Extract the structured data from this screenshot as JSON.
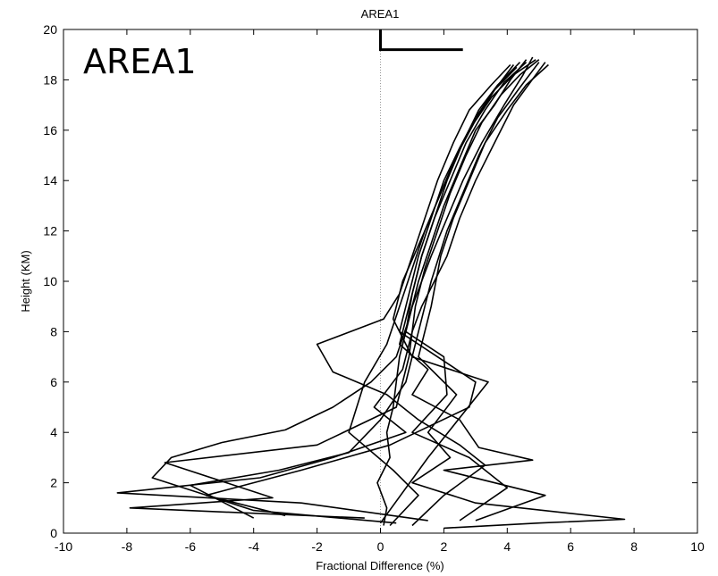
{
  "chart_data": {
    "type": "line",
    "title": "AREA1",
    "overlay_title": "AREA1",
    "xlabel": "Fractional Difference (%)",
    "ylabel": "Height (KM)",
    "xlim": [
      -10,
      10
    ],
    "ylim": [
      0,
      20
    ],
    "xticks": [
      -10,
      -8,
      -6,
      -4,
      -2,
      0,
      2,
      4,
      6,
      8,
      10
    ],
    "yticks": [
      0,
      2,
      4,
      6,
      8,
      10,
      12,
      14,
      16,
      18,
      20
    ],
    "grid": false,
    "reference_line": {
      "x": 0,
      "style": "dotted"
    },
    "top_marker": {
      "x": [
        0,
        0,
        2.6
      ],
      "y": [
        20,
        19.2,
        19.2
      ]
    },
    "series": [
      {
        "x": [
          0.1,
          0.2,
          -0.1,
          0.3,
          0.2,
          0.4,
          0.5,
          0.6,
          0.8,
          1.0,
          1.3,
          1.6,
          2.1,
          2.6,
          3.2,
          3.9,
          4.5,
          4.8
        ],
        "y": [
          0.3,
          1.0,
          2.0,
          3.0,
          4.0,
          5.0,
          6.0,
          7.0,
          8.0,
          9.0,
          10.0,
          11.0,
          12.5,
          14.0,
          15.5,
          17.0,
          18.2,
          18.9
        ]
      },
      {
        "x": [
          1.5,
          -2.5,
          -8.3,
          -3.8,
          -1.5,
          0.8,
          -0.2,
          0.7,
          1.0,
          1.3,
          1.7,
          2.1,
          2.5,
          3.0,
          3.6,
          4.2,
          4.9,
          5.2
        ],
        "y": [
          0.5,
          1.2,
          1.6,
          2.2,
          3.0,
          4.0,
          5.0,
          6.5,
          8.0,
          9.0,
          10.0,
          11.0,
          12.5,
          14.0,
          15.5,
          17.0,
          18.2,
          18.7
        ]
      },
      {
        "x": [
          0.5,
          -4.0,
          -7.2,
          -6.6,
          -5.0,
          -3.0,
          -1.5,
          -0.3,
          0.5,
          0.9,
          1.2,
          1.6,
          2.0,
          2.5,
          3.0,
          3.6,
          4.1,
          4.6
        ],
        "y": [
          0.4,
          0.9,
          2.2,
          3.0,
          3.6,
          4.1,
          5.0,
          6.0,
          7.0,
          8.5,
          10.0,
          11.5,
          13.0,
          14.5,
          16.0,
          17.0,
          18.0,
          18.8
        ]
      },
      {
        "x": [
          2.0,
          5.0,
          7.7,
          3.0,
          1.0,
          2.2,
          1.5,
          2.4,
          1.2,
          1.6,
          1.9,
          2.3,
          2.8,
          3.3,
          4.0,
          4.6,
          5.3
        ],
        "y": [
          0.2,
          0.4,
          0.55,
          1.2,
          2.0,
          3.0,
          4.0,
          5.5,
          7.0,
          9.0,
          11.0,
          12.5,
          14.0,
          15.5,
          16.8,
          17.8,
          18.6
        ]
      },
      {
        "x": [
          -0.5,
          -7.9,
          -3.4,
          -6.8,
          -2.0,
          0.5,
          0.9,
          1.1,
          1.4,
          1.8,
          2.2,
          2.7,
          3.2,
          3.8,
          4.4,
          5.0
        ],
        "y": [
          0.6,
          1.0,
          1.4,
          2.8,
          3.5,
          5.0,
          7.0,
          9.0,
          10.5,
          12.0,
          13.5,
          15.0,
          16.3,
          17.4,
          18.2,
          18.8
        ]
      },
      {
        "x": [
          3.0,
          5.2,
          2.0,
          4.8,
          3.1,
          2.5,
          1.0,
          1.5,
          0.6,
          0.9,
          1.3,
          1.7,
          2.1,
          2.6,
          3.1,
          3.7,
          4.4
        ],
        "y": [
          0.5,
          1.5,
          2.5,
          2.9,
          3.4,
          4.5,
          5.5,
          6.5,
          7.5,
          9.0,
          11.0,
          12.5,
          14.0,
          15.5,
          16.8,
          17.8,
          18.7
        ]
      },
      {
        "x": [
          -3.0,
          -5.5,
          -2.5,
          0.3,
          2.8,
          3.0,
          1.8,
          0.6,
          0.9,
          1.2,
          1.6,
          2.0,
          2.5,
          3.0,
          3.6,
          4.3
        ],
        "y": [
          0.7,
          1.5,
          2.5,
          3.5,
          5.0,
          6.0,
          7.0,
          8.0,
          9.5,
          11.0,
          12.5,
          14.0,
          15.3,
          16.5,
          17.6,
          18.5
        ]
      },
      {
        "x": [
          1.0,
          2.0,
          3.3,
          2.5,
          1.2,
          0.2,
          -1.5,
          -2.0,
          0.1,
          0.6,
          1.0,
          1.4,
          1.8,
          2.3,
          2.8,
          3.5,
          4.1
        ],
        "y": [
          0.3,
          1.5,
          2.7,
          3.5,
          4.5,
          5.5,
          6.4,
          7.5,
          8.5,
          9.5,
          11.0,
          12.5,
          14.0,
          15.5,
          16.8,
          17.8,
          18.6
        ]
      },
      {
        "x": [
          0.0,
          1.5,
          3.4,
          1.0,
          0.4,
          0.7,
          1.4,
          1.9,
          2.4,
          2.9,
          3.5,
          4.2,
          4.9
        ],
        "y": [
          0.4,
          3.0,
          6.0,
          7.0,
          8.5,
          10.0,
          12.0,
          13.5,
          15.0,
          16.2,
          17.3,
          18.2,
          18.8
        ]
      },
      {
        "x": [
          0.3,
          1.2,
          0.4,
          -1.0,
          -0.5,
          0.2,
          0.6,
          1.0,
          1.4,
          1.9,
          2.4,
          3.0,
          3.6,
          4.2
        ],
        "y": [
          0.3,
          1.5,
          2.5,
          4.0,
          6.0,
          7.5,
          9.0,
          10.5,
          12.0,
          13.5,
          15.0,
          16.4,
          17.6,
          18.6
        ]
      },
      {
        "x": [
          -4.0,
          -6.0,
          -3.2,
          -1.0,
          0.0,
          0.8,
          1.2,
          1.6,
          2.1,
          2.6,
          3.1,
          3.7,
          4.4,
          5.0
        ],
        "y": [
          0.6,
          1.9,
          2.5,
          3.2,
          4.5,
          6.0,
          8.0,
          10.0,
          12.0,
          13.5,
          15.0,
          16.5,
          17.7,
          18.7
        ]
      },
      {
        "x": [
          2.5,
          4.0,
          2.8,
          1.0,
          2.1,
          2.0,
          0.8,
          1.0,
          1.3,
          1.7,
          2.2,
          2.7,
          3.3,
          3.9,
          4.6
        ],
        "y": [
          0.5,
          1.8,
          3.0,
          4.0,
          5.5,
          7.0,
          8.0,
          9.5,
          11.0,
          12.5,
          14.0,
          15.5,
          16.8,
          17.9,
          18.7
        ]
      }
    ]
  }
}
